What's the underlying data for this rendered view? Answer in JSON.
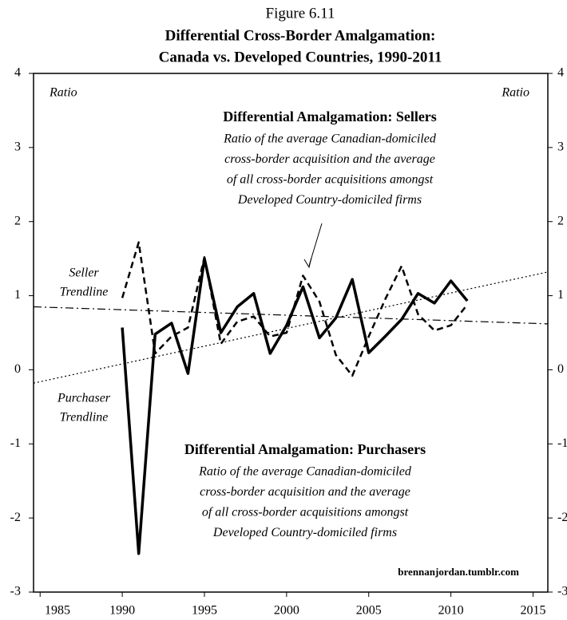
{
  "chart_data": {
    "type": "line",
    "figure": "Figure 6.11",
    "title": [
      "Differential Cross-Border Amalgamation:",
      "Canada vs. Developed Countries, 1990-2011"
    ],
    "y_label": "Ratio",
    "y2_label": "Ratio",
    "x": [
      1990,
      1991,
      1992,
      1993,
      1994,
      1995,
      1996,
      1997,
      1998,
      1999,
      2000,
      2001,
      2002,
      2003,
      2004,
      2005,
      2006,
      2007,
      2008,
      2009,
      2010,
      2011
    ],
    "series": [
      {
        "name": "Differential Amalgamation: Purchasers",
        "color": "#000",
        "style": "solid",
        "values": [
          0.57,
          -2.48,
          0.48,
          0.63,
          -0.05,
          1.5,
          0.5,
          0.85,
          1.03,
          0.22,
          0.6,
          1.12,
          0.43,
          0.7,
          1.22,
          0.23,
          0.45,
          0.68,
          1.03,
          0.9,
          1.2,
          0.93
        ]
      },
      {
        "name": "Differential Amalgamation: Sellers",
        "color": "#000",
        "style": "dashed",
        "values": [
          0.97,
          1.72,
          0.22,
          0.45,
          0.57,
          1.52,
          0.35,
          0.65,
          0.72,
          0.45,
          0.5,
          1.27,
          0.92,
          0.2,
          -0.08,
          0.45,
          0.95,
          1.4,
          0.75,
          0.53,
          0.6,
          0.88
        ]
      }
    ],
    "trendlines": [
      {
        "label": [
          "Seller",
          "Trendline"
        ],
        "style": "dashdot",
        "x": [
          1984.6,
          2015.9
        ],
        "values": [
          0.85,
          0.62
        ]
      },
      {
        "label": [
          "Purchaser",
          "Trendline"
        ],
        "style": "dotted",
        "x": [
          1984.6,
          2015.9
        ],
        "values": [
          -0.18,
          1.32
        ]
      }
    ],
    "annotations": [
      {
        "lines": [
          "Ratio of the average Canadian-domiciled",
          "cross-border acquisition and the average",
          "of all cross-border acquisitions amongst",
          "Developed Country-domiciled firms"
        ]
      },
      {
        "lines": [
          "Ratio of the average Canadian-domiciled",
          "cross-border acquisition and the average",
          "of all cross-border acquisitions amongst",
          "Developed Country-domiciled firms"
        ]
      }
    ],
    "source": "brennanjordan.tumblr.com",
    "xlim": [
      1984.6,
      2015.9
    ],
    "xticks": [
      1985,
      1990,
      1995,
      2000,
      2005,
      2010,
      2015
    ],
    "ylim": [
      -3,
      4
    ],
    "yticks": [
      -3,
      -2,
      -1,
      0,
      1,
      2,
      3,
      4
    ],
    "y2lim": [
      -3,
      4
    ],
    "y2ticks": [
      -3,
      -2,
      -1,
      0,
      1,
      2,
      3,
      4
    ]
  }
}
